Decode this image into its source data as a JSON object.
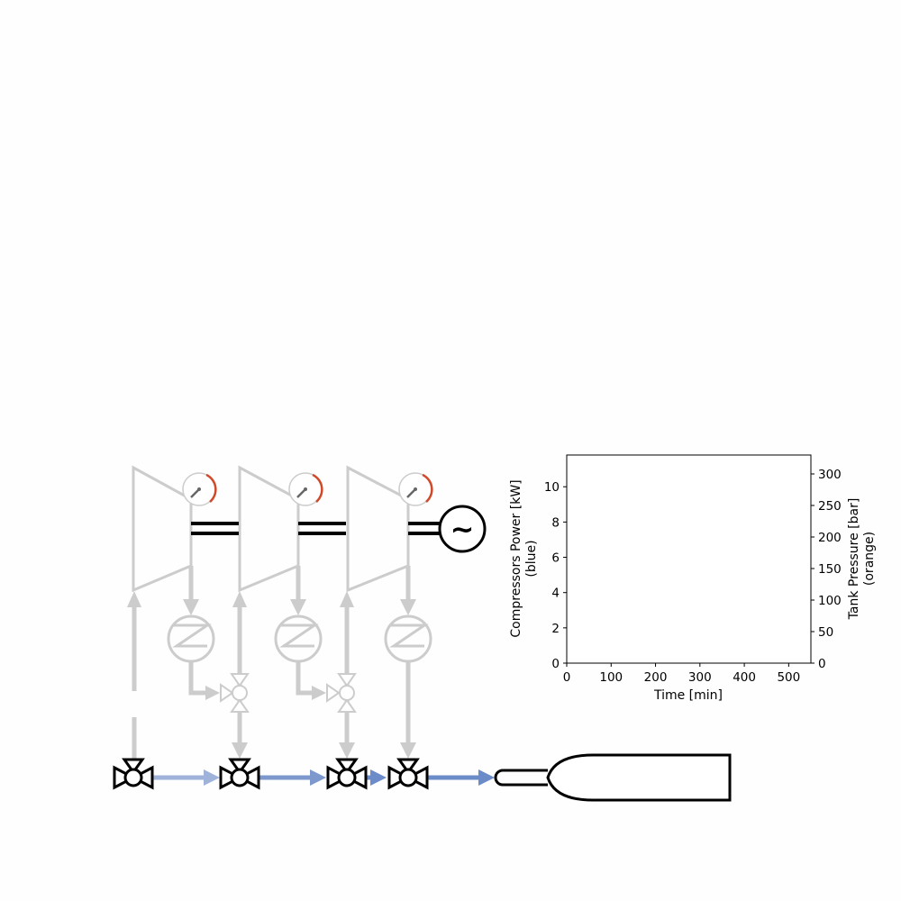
{
  "diagram": {
    "generator_icon": "~",
    "colors": {
      "inactive": "#cccccc",
      "flow": "#6b8cc8",
      "flow_faint": "#9fb3da",
      "outline": "#000000",
      "gauge_needle": "#666666",
      "gauge_redline": "#d2492a"
    },
    "stages": 3
  },
  "chart_data": {
    "type": "line",
    "xlabel": "Time [min]",
    "ylabel_left": "Compressors Power [kW]",
    "ylabel_left_note": "(blue)",
    "ylabel_right": "Tank Pressure [bar]",
    "ylabel_right_note": "(orange)",
    "xlim": [
      0,
      550
    ],
    "ylim_left": [
      0,
      11.8
    ],
    "ylim_right": [
      0,
      330
    ],
    "x_ticks": [
      "0",
      "100",
      "200",
      "300",
      "400",
      "500"
    ],
    "y_left_ticks": [
      "0",
      "2",
      "4",
      "6",
      "8",
      "10"
    ],
    "y_right_ticks": [
      "0",
      "50",
      "100",
      "150",
      "200",
      "250",
      "300"
    ],
    "series": []
  }
}
